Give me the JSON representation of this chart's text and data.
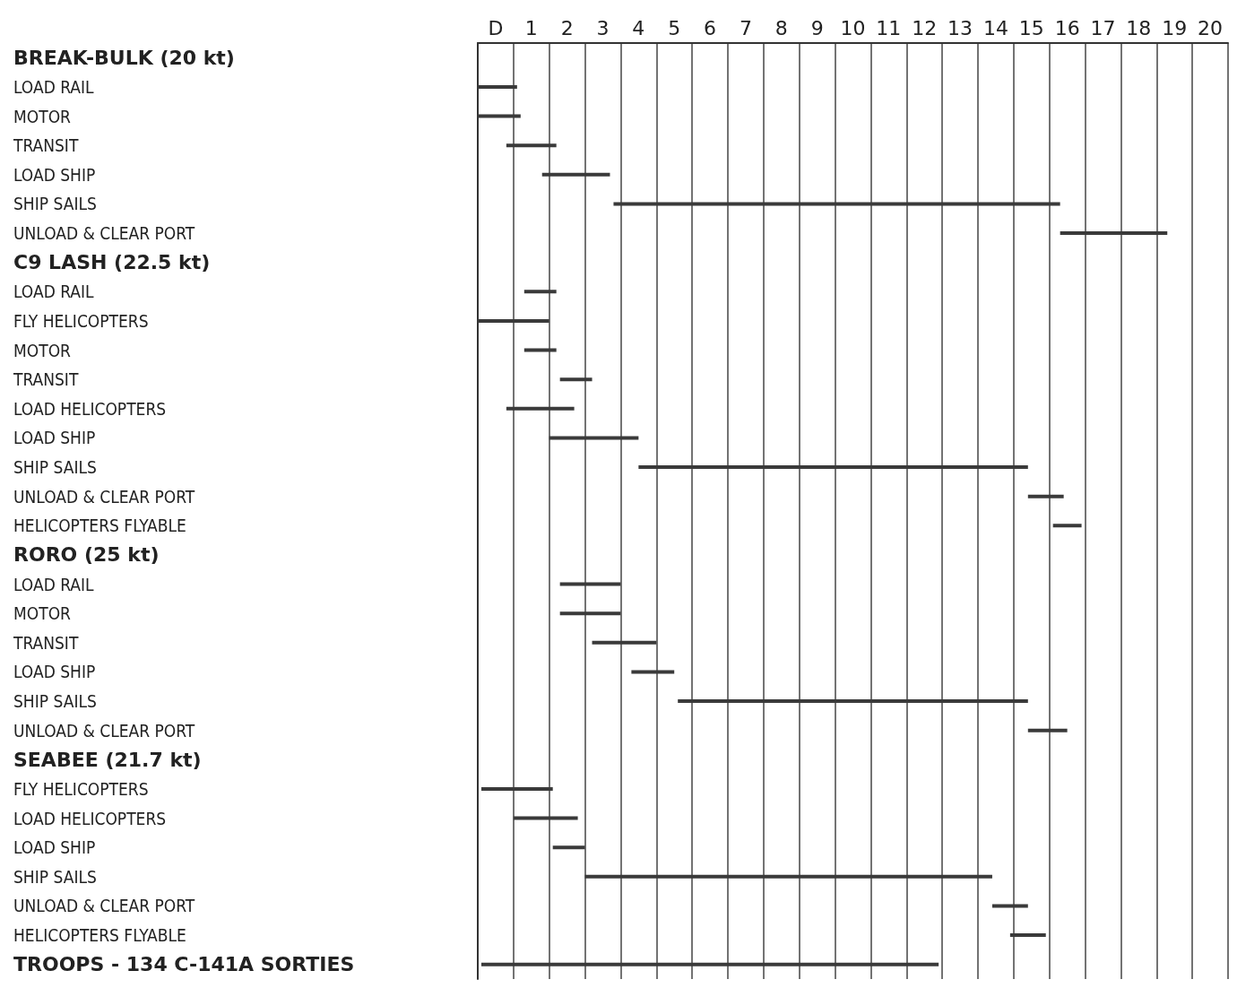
{
  "chart_data": {
    "type": "bar",
    "orientation": "horizontal",
    "color": "#3a3a3a",
    "grid": "x",
    "categories": [
      "BREAK-BULK (20 kt)",
      "LOAD RAIL",
      "MOTOR",
      "TRANSIT",
      "LOAD SHIP",
      "SHIP SAILS",
      "UNLOAD & CLEAR PORT",
      "C9 LASH (22.5 kt)",
      "LOAD RAIL",
      "FLY HELICOPTERS",
      "MOTOR",
      "TRANSIT",
      "LOAD HELICOPTERS",
      "LOAD SHIP",
      "SHIP SAILS",
      "UNLOAD & CLEAR PORT",
      "HELICOPTERS FLYABLE",
      "RORO (25 kt)",
      "LOAD RAIL",
      "MOTOR",
      "TRANSIT",
      "LOAD SHIP",
      "SHIP SAILS",
      "UNLOAD & CLEAR PORT",
      "SEABEE (21.7 kt)",
      "FLY HELICOPTERS",
      "LOAD HELICOPTERS",
      "LOAD SHIP",
      "SHIP SAILS",
      "UNLOAD & CLEAR PORT",
      "HELICOPTERS FLYABLE",
      "TROOPS - 134 C-141A SORTIES"
    ],
    "base": [
      null,
      0,
      0,
      0.8,
      1.8,
      3.8,
      16.3,
      null,
      1.3,
      0,
      1.3,
      2.3,
      0.8,
      2.0,
      4.5,
      15.4,
      16.1,
      null,
      2.3,
      2.3,
      3.2,
      4.3,
      5.6,
      15.4,
      null,
      0.1,
      1.0,
      2.1,
      3.0,
      14.4,
      14.9,
      0.1
    ],
    "values": [
      null,
      1.1,
      1.2,
      1.4,
      1.9,
      12.5,
      3.0,
      null,
      0.9,
      2.0,
      0.9,
      0.9,
      1.9,
      2.5,
      10.9,
      1.0,
      0.8,
      null,
      1.7,
      1.7,
      1.8,
      1.2,
      9.8,
      1.1,
      null,
      2.0,
      1.8,
      0.9,
      11.4,
      1.0,
      1.0,
      12.8
    ],
    "xlim": [
      0,
      21
    ],
    "xticks": [
      {
        "value": 0,
        "label": null
      },
      {
        "value": 1,
        "label": null
      },
      {
        "value": 2,
        "label": null
      },
      {
        "value": 3,
        "label": null
      },
      {
        "value": 4,
        "label": null
      },
      {
        "value": 5,
        "label": null
      },
      {
        "value": 6,
        "label": null
      },
      {
        "value": 7,
        "label": null
      },
      {
        "value": 8,
        "label": null
      },
      {
        "value": 9,
        "label": null
      },
      {
        "value": 10,
        "label": null
      },
      {
        "value": 11,
        "label": null
      },
      {
        "value": 12,
        "label": null
      },
      {
        "value": 13,
        "label": null
      },
      {
        "value": 14,
        "label": null
      },
      {
        "value": 15,
        "label": null
      },
      {
        "value": 16,
        "label": null
      },
      {
        "value": 17,
        "label": null
      },
      {
        "value": 18,
        "label": null
      },
      {
        "value": 19,
        "label": null
      },
      {
        "value": 20,
        "label": null
      },
      {
        "value": 21,
        "label": null
      },
      {
        "value": 0.5,
        "label": "D"
      },
      {
        "value": 1.5,
        "label": "1"
      },
      {
        "value": 2.5,
        "label": "2"
      },
      {
        "value": 3.5,
        "label": "3"
      },
      {
        "value": 4.5,
        "label": "4"
      },
      {
        "value": 5.5,
        "label": "5"
      },
      {
        "value": 6.5,
        "label": "6"
      },
      {
        "value": 7.5,
        "label": "7"
      },
      {
        "value": 8.5,
        "label": "8"
      },
      {
        "value": 9.5,
        "label": "9"
      },
      {
        "value": 10.5,
        "label": "10"
      },
      {
        "value": 11.5,
        "label": "11"
      },
      {
        "value": 12.5,
        "label": "12"
      },
      {
        "value": 13.5,
        "label": "13"
      },
      {
        "value": 14.5,
        "label": "14"
      },
      {
        "value": 15.5,
        "label": "15"
      },
      {
        "value": 16.5,
        "label": "16"
      },
      {
        "value": 17.5,
        "label": "17"
      },
      {
        "value": 18.5,
        "label": "18"
      },
      {
        "value": 19.5,
        "label": "19"
      },
      {
        "value": 20.5,
        "label": "20"
      }
    ]
  }
}
